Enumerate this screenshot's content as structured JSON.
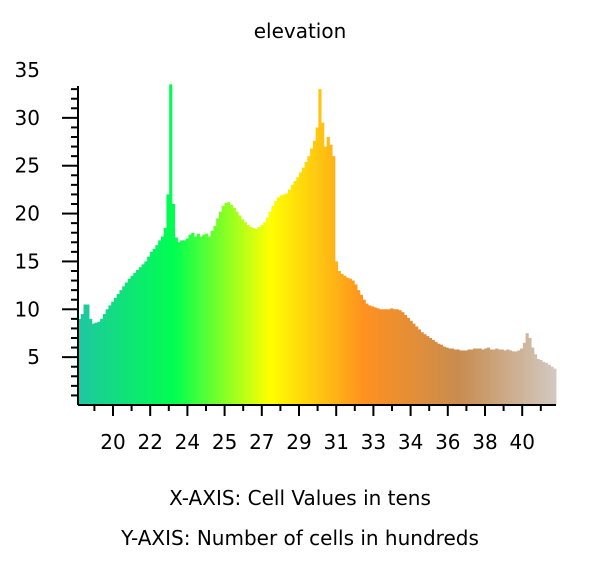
{
  "chart_data": {
    "type": "bar",
    "title": "elevation",
    "xlabel": "X-AXIS: Cell Values in tens",
    "ylabel": "Y-AXIS: Number of cells in hundreds",
    "ylim": [
      0,
      35
    ],
    "yticks": [
      "5",
      "10",
      "15",
      "20",
      "25",
      "30",
      "35"
    ],
    "xtick_labels": [
      "20",
      "22",
      "24",
      "25",
      "27",
      "29",
      "31",
      "33",
      "34",
      "36",
      "38",
      "40"
    ],
    "grid": false,
    "legend": "none",
    "color_ramp": [
      "#1ec8a0",
      "#00ff50",
      "#ffff00",
      "#ff9020",
      "#c88c50",
      "#d2c8c0"
    ],
    "series": [
      {
        "values": [
          9.0,
          9.5,
          10.5,
          10.5,
          9.0,
          8.5,
          8.6,
          8.7,
          9.0,
          9.5,
          10.0,
          10.4,
          10.8,
          11.2,
          11.6,
          12.0,
          12.4,
          12.8,
          13.2,
          13.5,
          13.8,
          14.1,
          14.4,
          14.7,
          15.0,
          15.5,
          16.0,
          16.3,
          16.7,
          17.2,
          17.6,
          18.5,
          22.0,
          33.5,
          21.0,
          17.5,
          17.0,
          17.2,
          17.2,
          17.4,
          17.8,
          18.0,
          17.6,
          17.9,
          17.6,
          17.8,
          17.9,
          17.6,
          18.2,
          18.7,
          19.5,
          20.2,
          20.8,
          21.1,
          21.2,
          20.9,
          20.6,
          20.2,
          19.8,
          19.4,
          19.1,
          18.8,
          18.6,
          18.5,
          18.4,
          18.6,
          18.8,
          19.1,
          19.6,
          20.2,
          20.8,
          21.3,
          21.7,
          21.9,
          22.0,
          22.1,
          22.5,
          23.0,
          23.4,
          23.8,
          24.3,
          24.8,
          25.4,
          26.0,
          26.8,
          27.6,
          29.0,
          33.0,
          29.5,
          27.0,
          28.0,
          27.2,
          26.0,
          15.0,
          14.0,
          13.7,
          13.5,
          13.3,
          13.2,
          13.0,
          12.6,
          12.0,
          11.5,
          11.0,
          10.6,
          10.4,
          10.3,
          10.2,
          10.1,
          10.0,
          10.0,
          10.0,
          10.0,
          10.1,
          10.0,
          10.0,
          9.9,
          9.7,
          9.4,
          9.1,
          8.8,
          8.5,
          8.2,
          7.9,
          7.6,
          7.4,
          7.2,
          7.0,
          6.8,
          6.6,
          6.4,
          6.3,
          6.1,
          6.0,
          5.9,
          5.9,
          5.8,
          5.8,
          5.7,
          5.7,
          5.7,
          5.8,
          5.8,
          5.9,
          5.9,
          5.9,
          5.8,
          5.9,
          6.0,
          5.8,
          5.8,
          5.9,
          5.8,
          5.8,
          5.7,
          5.8,
          5.7,
          5.6,
          5.6,
          5.7,
          5.9,
          6.5,
          7.5,
          7.0,
          6.0,
          5.3,
          4.8,
          4.7,
          4.5,
          4.4,
          4.2,
          4.0,
          3.8
        ]
      }
    ]
  }
}
